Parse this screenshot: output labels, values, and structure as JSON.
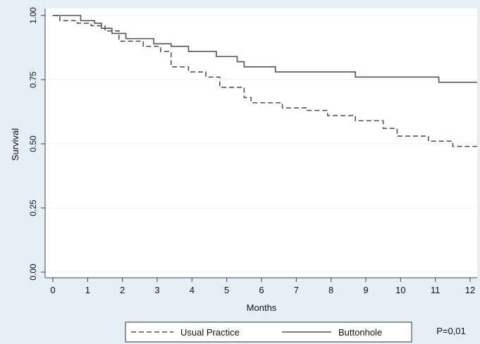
{
  "chart_data": {
    "type": "line",
    "title": "",
    "xlabel": "Months",
    "ylabel": "Survival",
    "xlim": [
      0,
      12
    ],
    "ylim": [
      0,
      1
    ],
    "x_ticks": [
      "0",
      "1",
      "2",
      "3",
      "4",
      "5",
      "6",
      "7",
      "8",
      "9",
      "10",
      "11",
      "12"
    ],
    "y_ticks": [
      "0.00",
      "0.25",
      "0.50",
      "0.75",
      "1.00"
    ],
    "grid": "horizontal",
    "legend_position": "bottom",
    "annotation": "P=0,01",
    "series": [
      {
        "name": "Usual Practice",
        "style": "dashed",
        "color": "#555555",
        "steps": [
          [
            0,
            1.0
          ],
          [
            0.2,
            0.98
          ],
          [
            0.7,
            0.97
          ],
          [
            1.1,
            0.96
          ],
          [
            1.5,
            0.94
          ],
          [
            1.9,
            0.9
          ],
          [
            2.6,
            0.88
          ],
          [
            3.1,
            0.86
          ],
          [
            3.4,
            0.8
          ],
          [
            3.9,
            0.78
          ],
          [
            4.4,
            0.76
          ],
          [
            4.8,
            0.72
          ],
          [
            5.5,
            0.68
          ],
          [
            5.7,
            0.66
          ],
          [
            6.6,
            0.64
          ],
          [
            7.3,
            0.63
          ],
          [
            7.9,
            0.61
          ],
          [
            8.7,
            0.59
          ],
          [
            9.5,
            0.56
          ],
          [
            9.9,
            0.53
          ],
          [
            10.8,
            0.51
          ],
          [
            11.5,
            0.49
          ],
          [
            12.2,
            0.49
          ]
        ]
      },
      {
        "name": "Buttonhole",
        "style": "solid",
        "color": "#555555",
        "steps": [
          [
            0,
            1.0
          ],
          [
            0.8,
            0.98
          ],
          [
            1.2,
            0.97
          ],
          [
            1.4,
            0.95
          ],
          [
            1.7,
            0.93
          ],
          [
            2.1,
            0.91
          ],
          [
            2.9,
            0.89
          ],
          [
            3.4,
            0.88
          ],
          [
            3.9,
            0.86
          ],
          [
            4.7,
            0.84
          ],
          [
            5.3,
            0.82
          ],
          [
            5.5,
            0.8
          ],
          [
            6.4,
            0.78
          ],
          [
            8.7,
            0.76
          ],
          [
            11.1,
            0.74
          ],
          [
            12.2,
            0.74
          ]
        ]
      }
    ]
  }
}
